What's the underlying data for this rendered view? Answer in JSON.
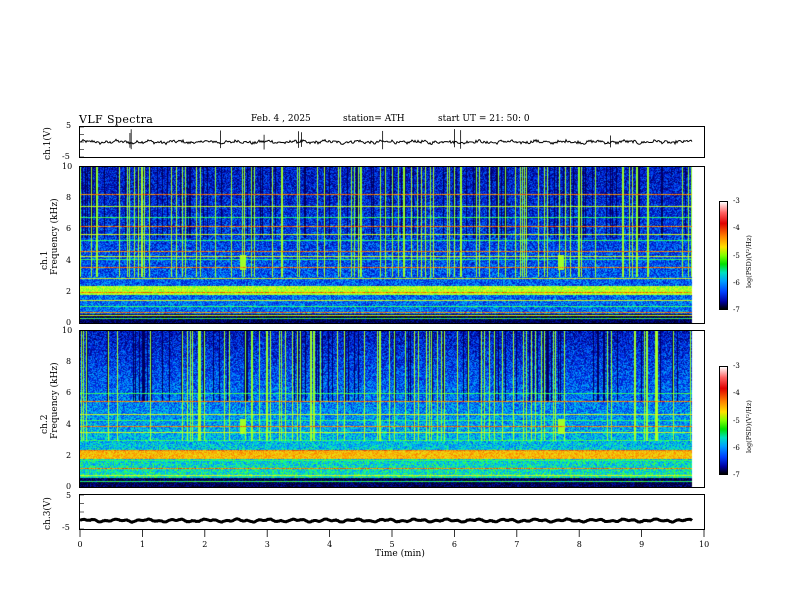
{
  "header": {
    "title": "VLF  Spectra",
    "date": "Feb. 4  , 2025",
    "station": "station= ATH",
    "start": "start  UT  =    21: 50: 0"
  },
  "channels": {
    "ch1_wave_label": "ch.1(V)",
    "ch1_spec_label": "ch.1\nFrequency  (kHz)",
    "ch2_spec_label": "ch.2\nFrequency  (kHz)",
    "ch3_wave_label": "ch.3(V)"
  },
  "colorbar": {
    "label": "log(PSD)(V²/Hz)",
    "ticks": [
      "-3",
      "-4",
      "-5",
      "-6",
      "-7"
    ]
  },
  "colors": {
    "bg_deep": "#000060",
    "blue": "#0030e0",
    "cyan": "#00b0ff",
    "green": "#40ff40",
    "yellow": "#ffff30",
    "red": "#e00000"
  },
  "chart_data": [
    {
      "type": "line",
      "name_panel": "ch1-waveform",
      "ylabel": "ch.1(V)",
      "yticks": [
        "5",
        "-5"
      ],
      "ylim": [
        -5,
        5
      ],
      "xlim": [
        0,
        10
      ],
      "mean": 0
    },
    {
      "type": "heatmap",
      "name_panel": "ch1-spectrogram",
      "ylabel": "Frequency  (kHz)",
      "yticks": [
        "10",
        "8",
        "6",
        "4",
        "2",
        "0"
      ],
      "ylim": [
        0,
        10
      ],
      "xlim": [
        0,
        9.8
      ],
      "zlim": [
        -7,
        -3
      ],
      "lines_khz": [
        0.3,
        0.5,
        0.7,
        1.1,
        1.5,
        2.0,
        2.2,
        2.9,
        3.6,
        4.1,
        4.3,
        4.6,
        5.3,
        5.7,
        6.2,
        6.8,
        7.5,
        8.3
      ],
      "bursts_min": [
        2.6,
        7.7
      ]
    },
    {
      "type": "heatmap",
      "name_panel": "ch2-spectrogram",
      "ylabel": "Frequency  (kHz)",
      "yticks": [
        "10",
        "8",
        "6",
        "4",
        "2",
        "0"
      ],
      "ylim": [
        0,
        10
      ],
      "xlim": [
        0,
        9.8
      ],
      "zlim": [
        -7,
        -3
      ],
      "lines_khz": [
        0.4,
        0.8,
        1.2,
        1.7,
        2.1,
        2.4,
        3.0,
        3.5,
        3.9,
        4.3,
        4.7,
        5.5,
        6.0
      ],
      "bursts_min": [
        2.6,
        7.7
      ]
    },
    {
      "type": "line",
      "name_panel": "ch3-waveform",
      "ylabel": "ch.3(V)",
      "yticks": [
        "5",
        "-5"
      ],
      "ylim": [
        -5,
        5
      ],
      "xlim": [
        0,
        10
      ],
      "mean": -2.5
    }
  ],
  "xaxis": {
    "label": "Time  (min)",
    "ticks": [
      "0",
      "1",
      "2",
      "3",
      "4",
      "5",
      "6",
      "7",
      "8",
      "9",
      "10"
    ],
    "xlim": [
      0,
      10
    ]
  }
}
